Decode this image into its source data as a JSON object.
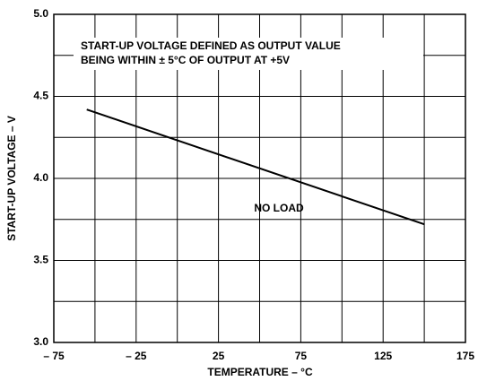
{
  "chart_data": {
    "type": "line",
    "xlabel": "TEMPERATURE – °C",
    "ylabel": "START-UP VOLTAGE – V",
    "annotations": [
      "START-UP VOLTAGE DEFINED AS OUTPUT VALUE",
      "BEING WITHIN ± 5°C OF OUTPUT AT +5V",
      "NO LOAD"
    ],
    "x": [
      -55,
      150
    ],
    "series": [
      {
        "color": "#000000",
        "values": [
          4.42,
          3.72
        ]
      }
    ],
    "xlim": [
      -75,
      175
    ],
    "xticks": [
      {
        "value": -75,
        "label": "– 75"
      },
      {
        "value": -25,
        "label": "– 25"
      },
      25,
      75,
      125,
      175
    ],
    "xminor": [
      -50,
      0,
      50,
      100,
      150
    ],
    "ylim": [
      3,
      5
    ],
    "yticks": [
      {
        "value": 3,
        "label": "3.0"
      },
      3.5,
      {
        "value": 4,
        "label": "4.0"
      },
      4.5,
      {
        "value": 5,
        "label": "5.0"
      }
    ],
    "yminor": [
      3.25,
      3.75,
      4.25,
      4.75
    ],
    "grid": true
  }
}
